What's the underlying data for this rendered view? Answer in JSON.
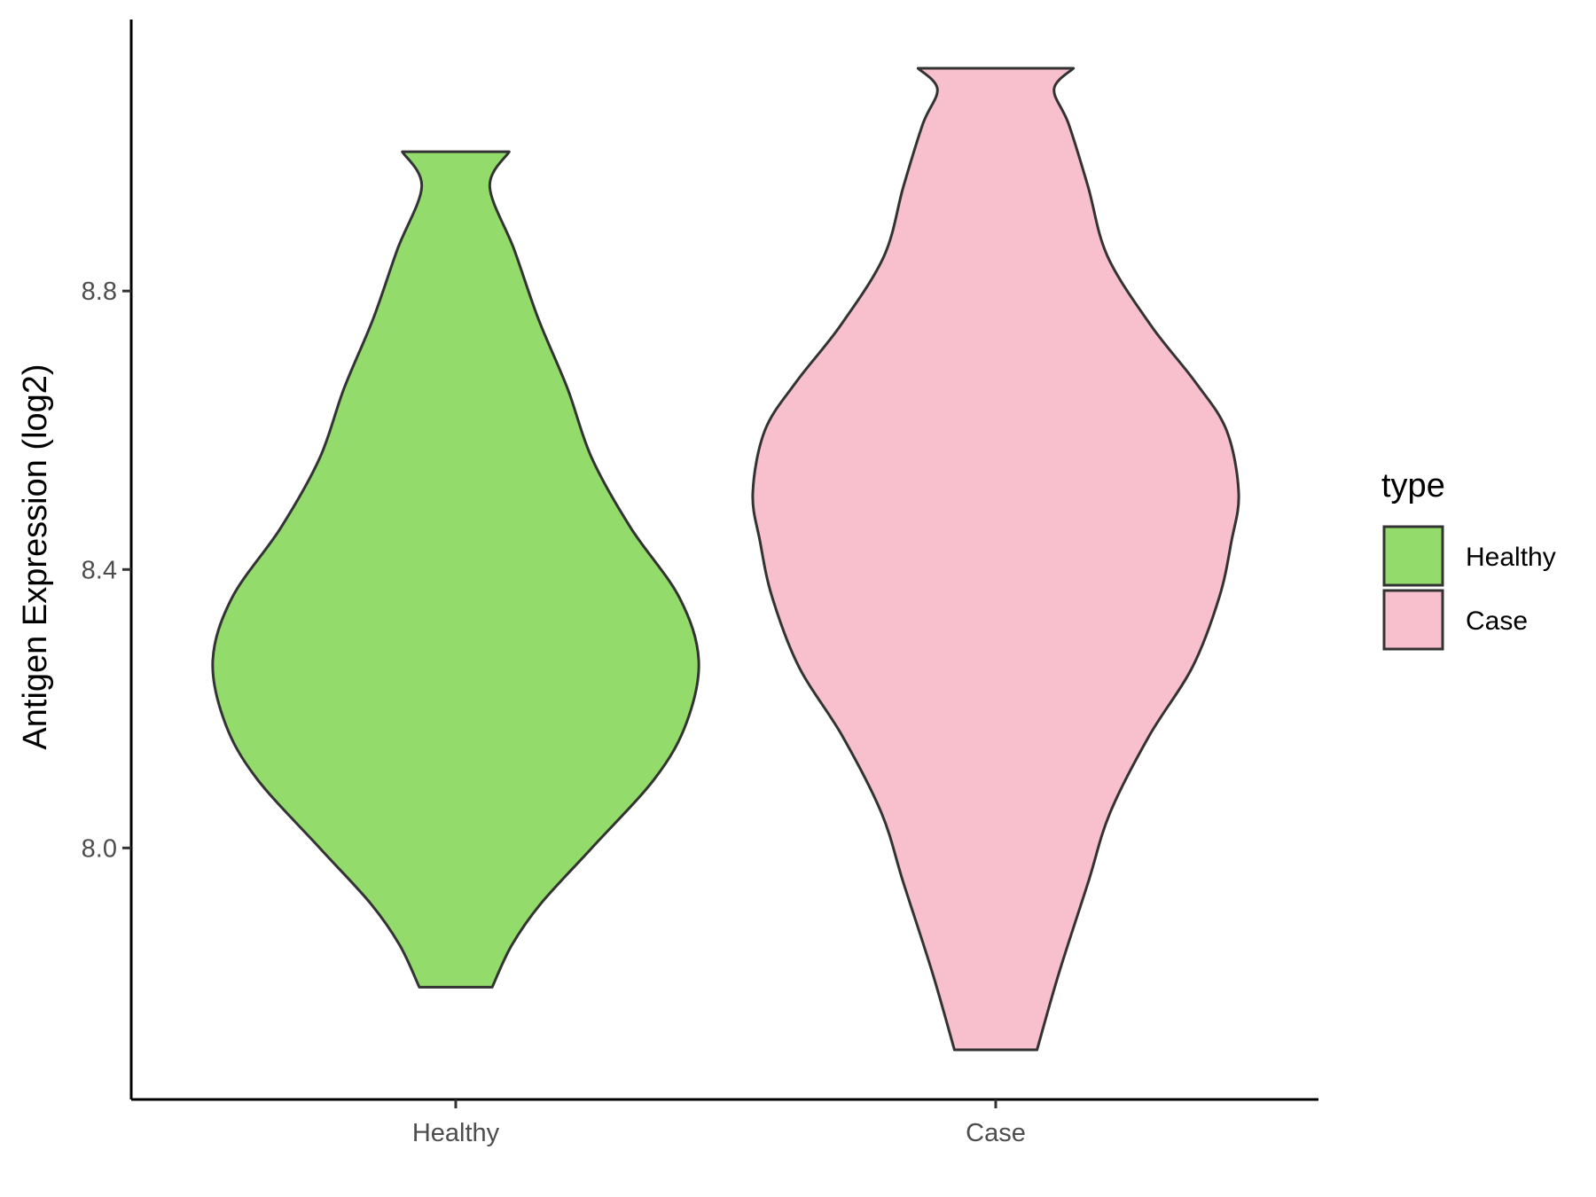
{
  "chart_data": {
    "type": "violin",
    "title": "",
    "xlabel": "",
    "ylabel": "Antigen Expression (log2)",
    "ylim": [
      7.64,
      9.19
    ],
    "yticks": [
      8.0,
      8.4,
      8.8
    ],
    "ytick_labels": [
      "8.0",
      "8.4",
      "8.8"
    ],
    "categories": [
      "Healthy",
      "Case"
    ],
    "grid": false,
    "legend": {
      "title": "type",
      "position": "right",
      "entries": [
        {
          "label": "Healthy",
          "color": "#93dc6b"
        },
        {
          "label": "Case",
          "color": "#f7c0cc"
        }
      ]
    },
    "series": [
      {
        "name": "Healthy",
        "color": "#93dc6b",
        "min": 7.8,
        "max": 9.0,
        "density": [
          [
            7.8,
            0.15
          ],
          [
            7.86,
            0.23
          ],
          [
            7.92,
            0.35
          ],
          [
            8.0,
            0.56
          ],
          [
            8.1,
            0.82
          ],
          [
            8.18,
            0.95
          ],
          [
            8.27,
            1.0
          ],
          [
            8.36,
            0.92
          ],
          [
            8.46,
            0.72
          ],
          [
            8.56,
            0.56
          ],
          [
            8.66,
            0.46
          ],
          [
            8.76,
            0.34
          ],
          [
            8.86,
            0.24
          ],
          [
            8.95,
            0.14
          ],
          [
            9.0,
            0.22
          ]
        ]
      },
      {
        "name": "Case",
        "color": "#f7c0cc",
        "min": 7.71,
        "max": 9.12,
        "density": [
          [
            7.71,
            0.17
          ],
          [
            7.82,
            0.26
          ],
          [
            7.95,
            0.38
          ],
          [
            8.05,
            0.47
          ],
          [
            8.16,
            0.63
          ],
          [
            8.26,
            0.81
          ],
          [
            8.36,
            0.92
          ],
          [
            8.44,
            0.97
          ],
          [
            8.51,
            1.0
          ],
          [
            8.6,
            0.95
          ],
          [
            8.67,
            0.82
          ],
          [
            8.75,
            0.64
          ],
          [
            8.85,
            0.46
          ],
          [
            8.95,
            0.38
          ],
          [
            9.04,
            0.3
          ],
          [
            9.09,
            0.24
          ],
          [
            9.12,
            0.32
          ]
        ]
      }
    ]
  }
}
